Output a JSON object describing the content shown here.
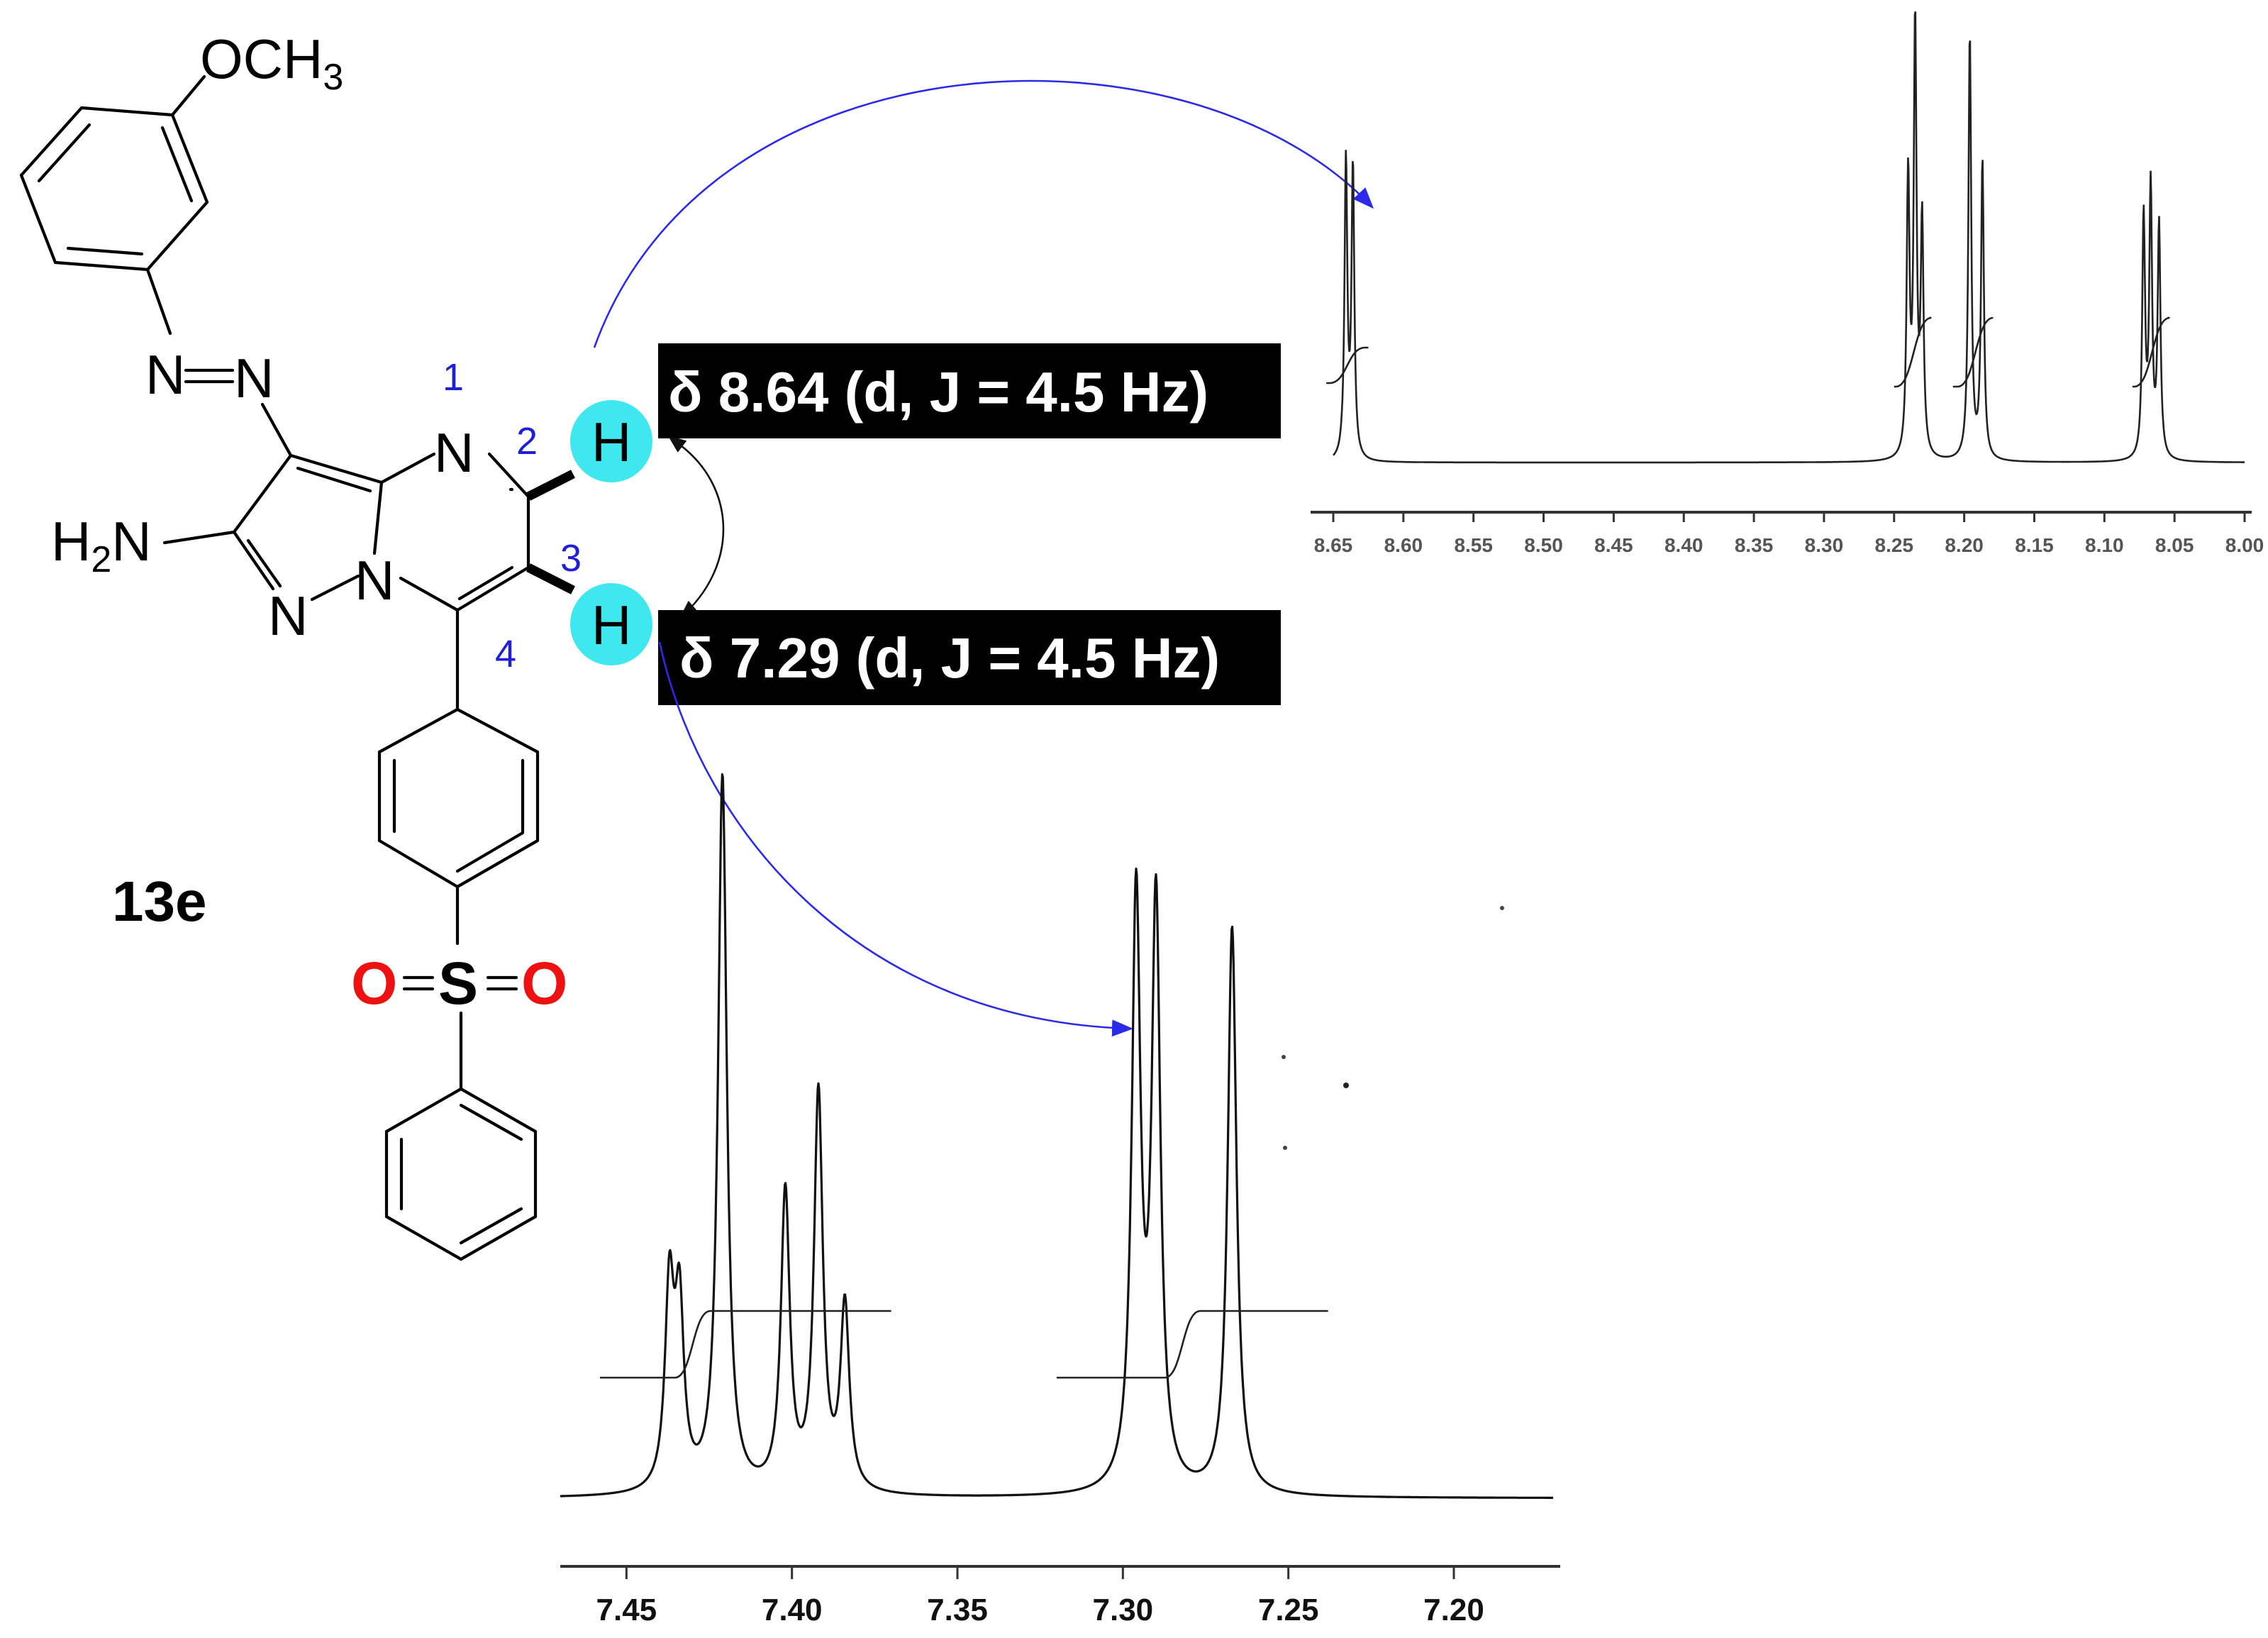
{
  "compound": {
    "id": "13e",
    "methoxy": "OCH",
    "methoxy_sub": "3",
    "amine": "H",
    "amine_sub": "2",
    "amine_tail": "N",
    "sulfur": "S",
    "oxygen_left": "O",
    "oxygen_right": "O",
    "hydrogen": "H",
    "nitrogen": "N",
    "positions": [
      "1",
      "2",
      "3",
      "4"
    ],
    "highlight_color": "#3fe8ee"
  },
  "assignments": [
    {
      "text": "δ 8.64 (d, J = 4.5 Hz)",
      "shift": 8.64,
      "multiplicity": "d",
      "J_Hz": 4.5
    },
    {
      "text": "δ 7.29 (d, J = 4.5 Hz)",
      "shift": 7.29,
      "multiplicity": "d",
      "J_Hz": 4.5
    }
  ],
  "chart_data": [
    {
      "type": "line",
      "xlabel": "",
      "ylabel": "",
      "xlim": [
        8.65,
        8.0
      ],
      "ticks": [
        "8.65",
        "8.60",
        "8.55",
        "8.50",
        "8.45",
        "8.40",
        "8.35",
        "8.30",
        "8.25",
        "8.20",
        "8.15",
        "8.10",
        "8.05",
        "8.00"
      ],
      "peaks_ppm": [
        8.641,
        8.636,
        8.24,
        8.235,
        8.23,
        8.196,
        8.187,
        8.072,
        8.067,
        8.061
      ],
      "grid": false
    },
    {
      "type": "line",
      "xlabel": "",
      "ylabel": "",
      "xlim": [
        7.47,
        7.17
      ],
      "ticks": [
        "7.45",
        "7.40",
        "7.35",
        "7.30",
        "7.25",
        "7.20"
      ],
      "peaks_ppm": [
        7.437,
        7.434,
        7.421,
        7.402,
        7.392,
        7.384,
        7.296,
        7.29,
        7.267
      ],
      "grid": false
    }
  ],
  "colors": {
    "arrow": "#2a2ae8",
    "label_bg": "#000000",
    "label_fg": "#ffffff",
    "position_numbers": "#1f1fd6",
    "sulfonyl_oxygen": "#ee1111"
  }
}
